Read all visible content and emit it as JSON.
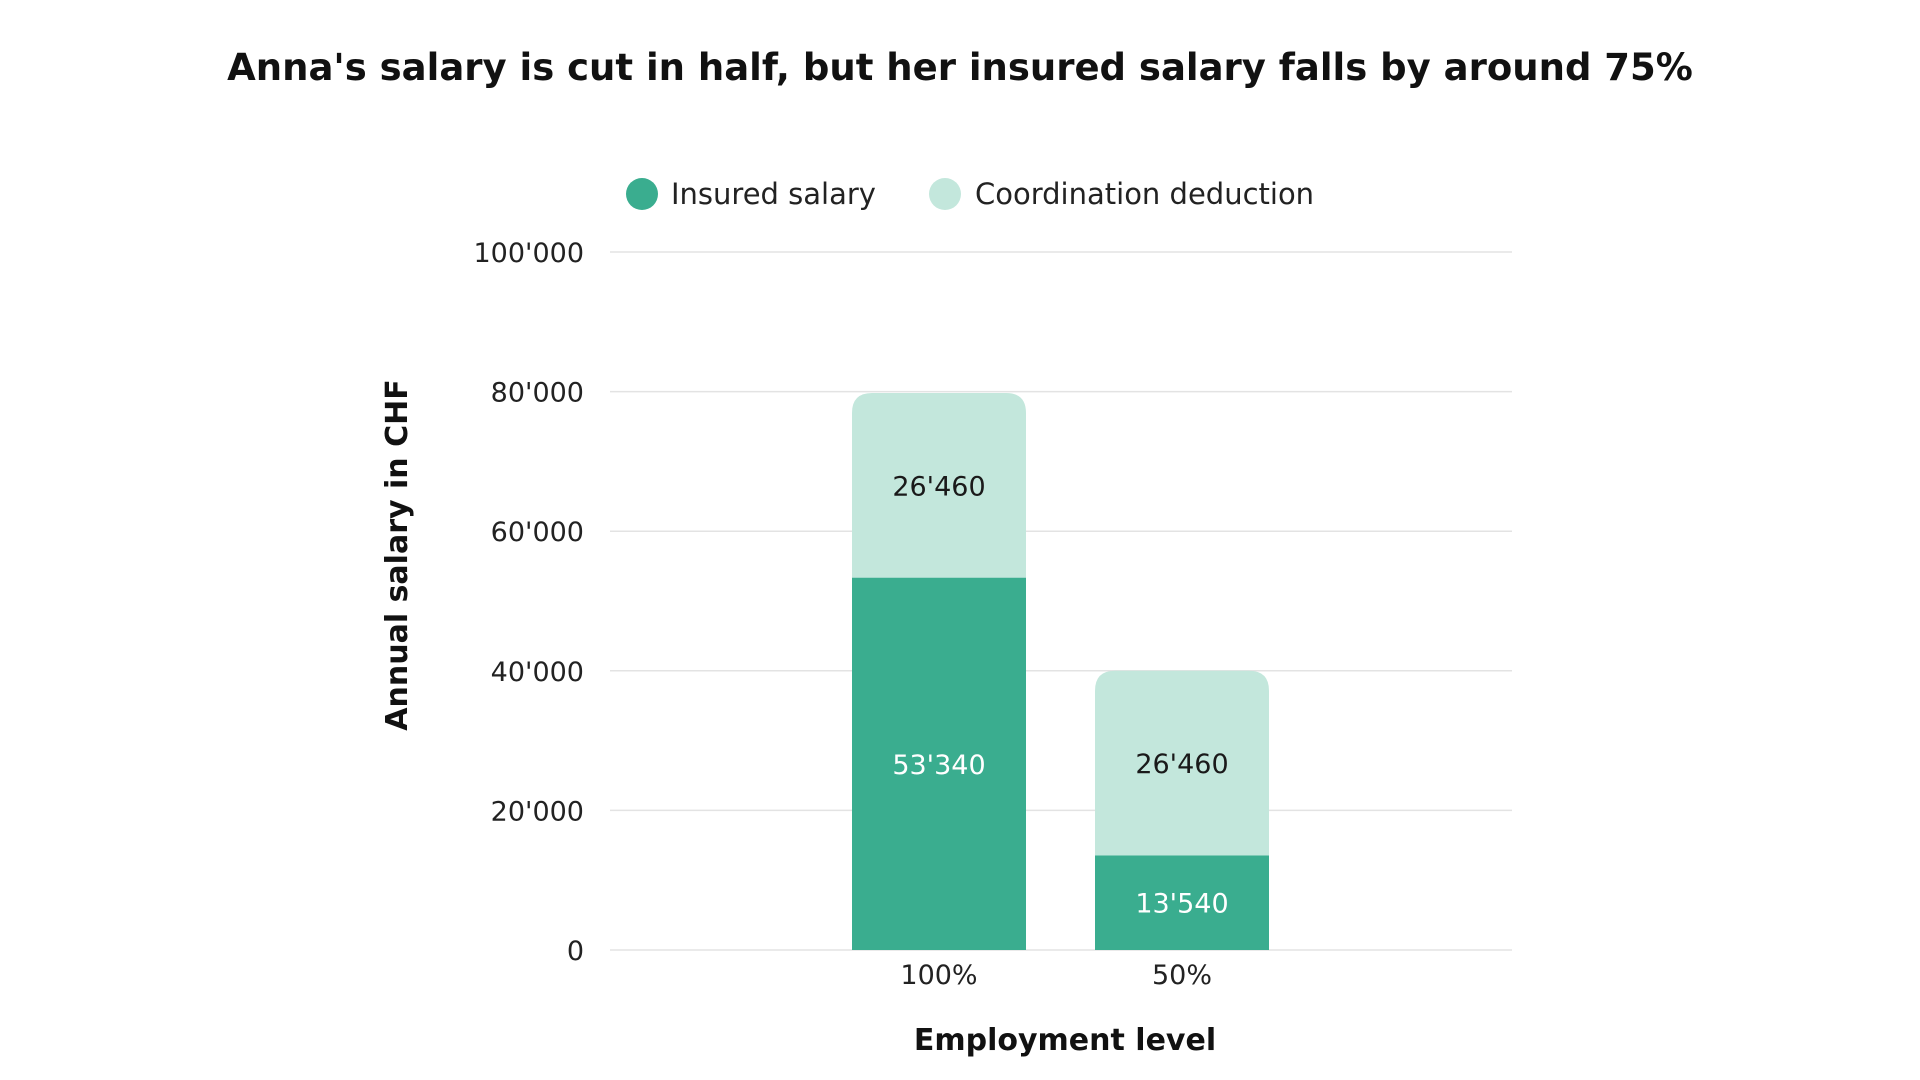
{
  "chart_data": {
    "type": "bar",
    "stacked": true,
    "title": "Anna's salary is cut in half, but her insured salary falls by around 75%",
    "xlabel": "Employment level",
    "ylabel": "Annual salary in CHF",
    "categories": [
      "100%",
      "50%"
    ],
    "series": [
      {
        "name": "Insured salary",
        "color": "#3aad8f",
        "label_color": "#ffffff",
        "values": [
          53340,
          13540
        ],
        "value_labels": [
          "53'340",
          "13'540"
        ]
      },
      {
        "name": "Coordination deduction",
        "color": "#c3e7dc",
        "label_color": "#1a1a1a",
        "values": [
          26460,
          26460
        ],
        "value_labels": [
          "26'460",
          "26'460"
        ]
      }
    ],
    "ylim": [
      0,
      100000
    ],
    "yticks": [
      0,
      20000,
      40000,
      60000,
      80000,
      100000
    ],
    "ytick_labels": [
      "0",
      "20'000",
      "40'000",
      "60'000",
      "80'000",
      "100'000"
    ],
    "grid": true,
    "legend_position": "top"
  }
}
